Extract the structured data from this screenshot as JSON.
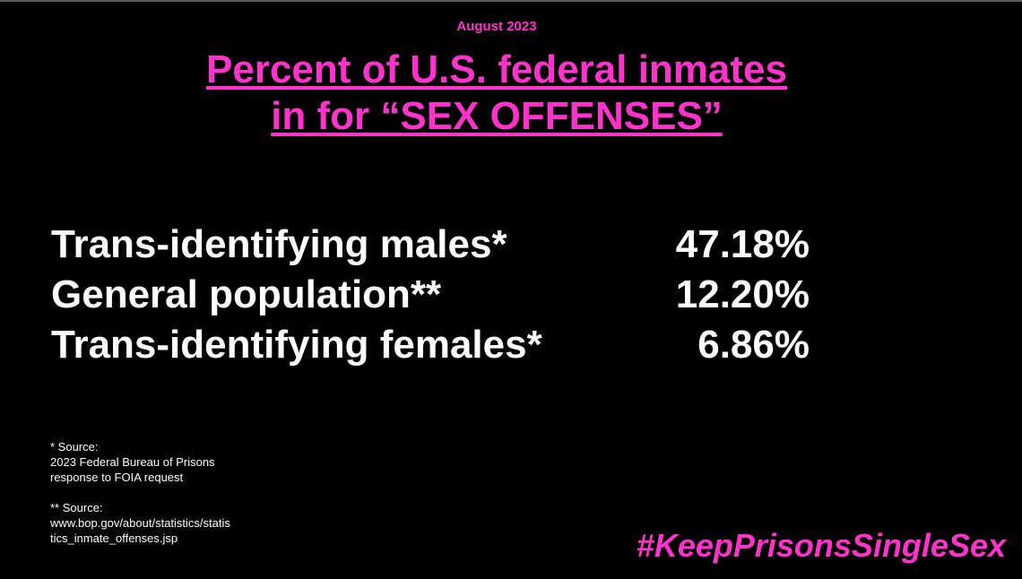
{
  "date_label": "August 2023",
  "title": {
    "line1": "Percent of U.S. federal inmates",
    "line2": "in for “SEX OFFENSES”"
  },
  "stats": [
    {
      "label": "Trans-identifying males*",
      "value": "47.18%"
    },
    {
      "label": "General population**",
      "value": "12.20%"
    },
    {
      "label": "Trans-identifying females*",
      "value": "6.86%"
    }
  ],
  "sources": {
    "source1_heading": "* Source:",
    "source1_line1": "2023 Federal Bureau of Prisons",
    "source1_line2": "response to FOIA request",
    "source2_heading": "** Source:",
    "source2_line1": "www.bop.gov/about/statistics/statis",
    "source2_line2": "tics_inmate_offenses.jsp"
  },
  "hashtag": "#KeepPrisonsSingleSex",
  "colors": {
    "background": "#000000",
    "accent": "#ff33cc",
    "text": "#ffffff"
  }
}
